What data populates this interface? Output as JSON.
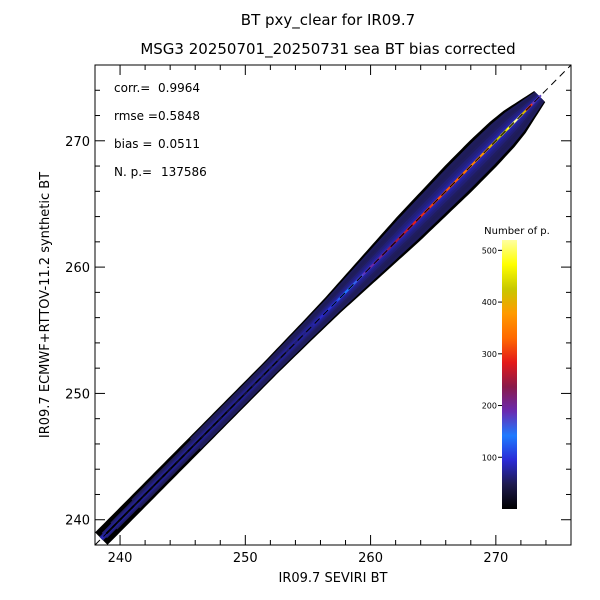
{
  "chart_data": {
    "type": "heatmap",
    "title": "BT pxy_clear for IR09.7",
    "subtitle": "MSG3 20250701_20250731 sea BT bias corrected",
    "xlabel": "IR09.7 SEVIRI BT",
    "ylabel": "IR09.7 ECMWF+RTTOV-11.2 synthetic BT",
    "xlim": [
      238,
      276
    ],
    "ylim": [
      238,
      276
    ],
    "x_ticks": [
      240,
      250,
      260,
      270
    ],
    "y_ticks": [
      240,
      250,
      260,
      270
    ],
    "stats": [
      {
        "label": "corr.=",
        "value": "0.9964"
      },
      {
        "label": "rmse =",
        "value": "0.5848"
      },
      {
        "label": "bias =",
        "value": "0.0511"
      },
      {
        "label": "N. p.=",
        "value": "137586"
      }
    ],
    "colorbar": {
      "title": "Number of p.",
      "range": [
        0,
        520
      ],
      "ticks": [
        100,
        200,
        300,
        400,
        500
      ]
    },
    "density_along_diagonal": {
      "bt": [
        238.5,
        240,
        244,
        248,
        252,
        255,
        257,
        259,
        261,
        263,
        265,
        267,
        269,
        270.5,
        271.5,
        272.5,
        273.5
      ],
      "count": [
        5,
        8,
        15,
        25,
        40,
        70,
        110,
        170,
        220,
        280,
        310,
        330,
        380,
        450,
        520,
        300,
        60
      ],
      "spread": [
        0.9,
        0.9,
        0.9,
        0.9,
        0.9,
        1.0,
        1.1,
        1.3,
        1.5,
        1.7,
        1.8,
        1.9,
        1.9,
        1.8,
        1.6,
        1.2,
        0.8
      ]
    },
    "reference_line": "y = x",
    "grid": false,
    "legend_position": "right"
  },
  "colors": {
    "colormap": [
      "#000000",
      "#1e1b4e",
      "#2a2ad6",
      "#1e7bff",
      "#6a2ab0",
      "#8a1a4a",
      "#e41a1a",
      "#ff6a00",
      "#ff9a00",
      "#c8c800",
      "#ffff00",
      "#ffffa0"
    ]
  }
}
